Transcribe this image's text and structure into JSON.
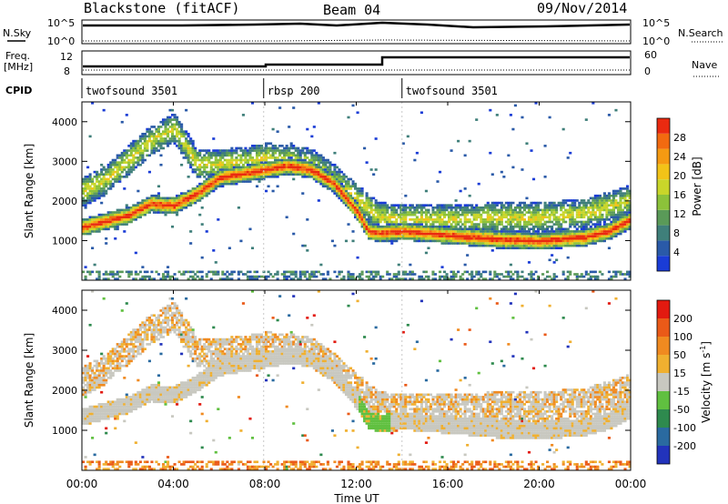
{
  "header": {
    "station": "Blackstone (fitACF)",
    "beam": "Beam 04",
    "date": "09/Nov/2014"
  },
  "noise_panel": {
    "left_label": "N.Sky",
    "right_label": "N.Search",
    "left_ticks": [
      "10^5",
      "10^0"
    ],
    "right_ticks": [
      "10^5",
      "10^0"
    ]
  },
  "freq_panel": {
    "left_label_line1": "Freq.",
    "left_label_line2": "[MHz]",
    "right_label": "Nave",
    "left_ticks": [
      "12",
      "8"
    ],
    "right_ticks": [
      "60",
      "0"
    ]
  },
  "cpid_panel": {
    "label": "CPID",
    "segments": [
      {
        "name": "twofsound 3501",
        "start_h": 0,
        "end_h": 7.95
      },
      {
        "name": "rbsp 200",
        "start_h": 7.95,
        "end_h": 14.0
      },
      {
        "name": "twofsound 3501",
        "start_h": 14.0,
        "end_h": 24
      }
    ]
  },
  "axes": {
    "x_ticks": [
      "00:00",
      "04:00",
      "08:00",
      "12:00",
      "16:00",
      "20:00",
      "00:00"
    ],
    "x_label": "Time UT",
    "y_label": "Slant Range [km]",
    "y_ticks": [
      "1000",
      "2000",
      "3000",
      "4000"
    ]
  },
  "power_colorbar": {
    "label": "Power [dB]",
    "ticks": [
      "4",
      "8",
      "12",
      "16",
      "20",
      "24",
      "28"
    ],
    "colors": [
      "#1a3cd6",
      "#2a5aa8",
      "#3f7f7a",
      "#5a9a58",
      "#8cc23a",
      "#c9d62a",
      "#f2c318",
      "#f59a12",
      "#f26a10",
      "#ea2a10"
    ]
  },
  "velocity_colorbar": {
    "label": "Velocity [m s^-1]",
    "label_main": "Velocity [m s",
    "label_sup": "-1",
    "label_tail": "]",
    "ticks": [
      "200",
      "100",
      "50",
      "15",
      "-15",
      "-50",
      "-100",
      "-200"
    ],
    "colors": [
      "#2233bb",
      "#2a6aa0",
      "#2e8a4e",
      "#60c040",
      "#c8c8c0",
      "#f0b030",
      "#f08a20",
      "#ea5a18",
      "#e21a10"
    ]
  },
  "chart_data": {
    "type": "heatmap",
    "x_unit": "UT hours",
    "xlim": [
      0,
      24
    ],
    "ylim": [
      0,
      4500
    ],
    "panels": [
      "power",
      "velocity"
    ],
    "main_band_range_km": {
      "time_h": [
        0,
        1,
        2,
        3,
        4,
        5,
        6,
        7,
        8,
        9,
        10,
        11,
        12,
        12.5,
        13,
        14,
        16,
        18,
        20,
        22,
        23,
        24
      ],
      "range_km": [
        1300,
        1450,
        1600,
        1900,
        1850,
        2150,
        2550,
        2650,
        2750,
        2850,
        2750,
        2400,
        1700,
        1200,
        1150,
        1200,
        1100,
        1000,
        950,
        1050,
        1200,
        1500
      ]
    },
    "secondary_band_range_km": {
      "time_h": [
        0,
        1,
        2,
        3,
        4,
        5,
        6,
        7,
        8,
        9,
        10,
        11,
        12,
        13,
        14,
        16,
        18,
        20,
        22,
        24
      ],
      "range_km": [
        2200,
        2500,
        3000,
        3500,
        3800,
        2900,
        2900,
        2950,
        3050,
        3000,
        2900,
        2500,
        2000,
        1550,
        1500,
        1500,
        1550,
        1550,
        1650,
        2000
      ]
    }
  }
}
